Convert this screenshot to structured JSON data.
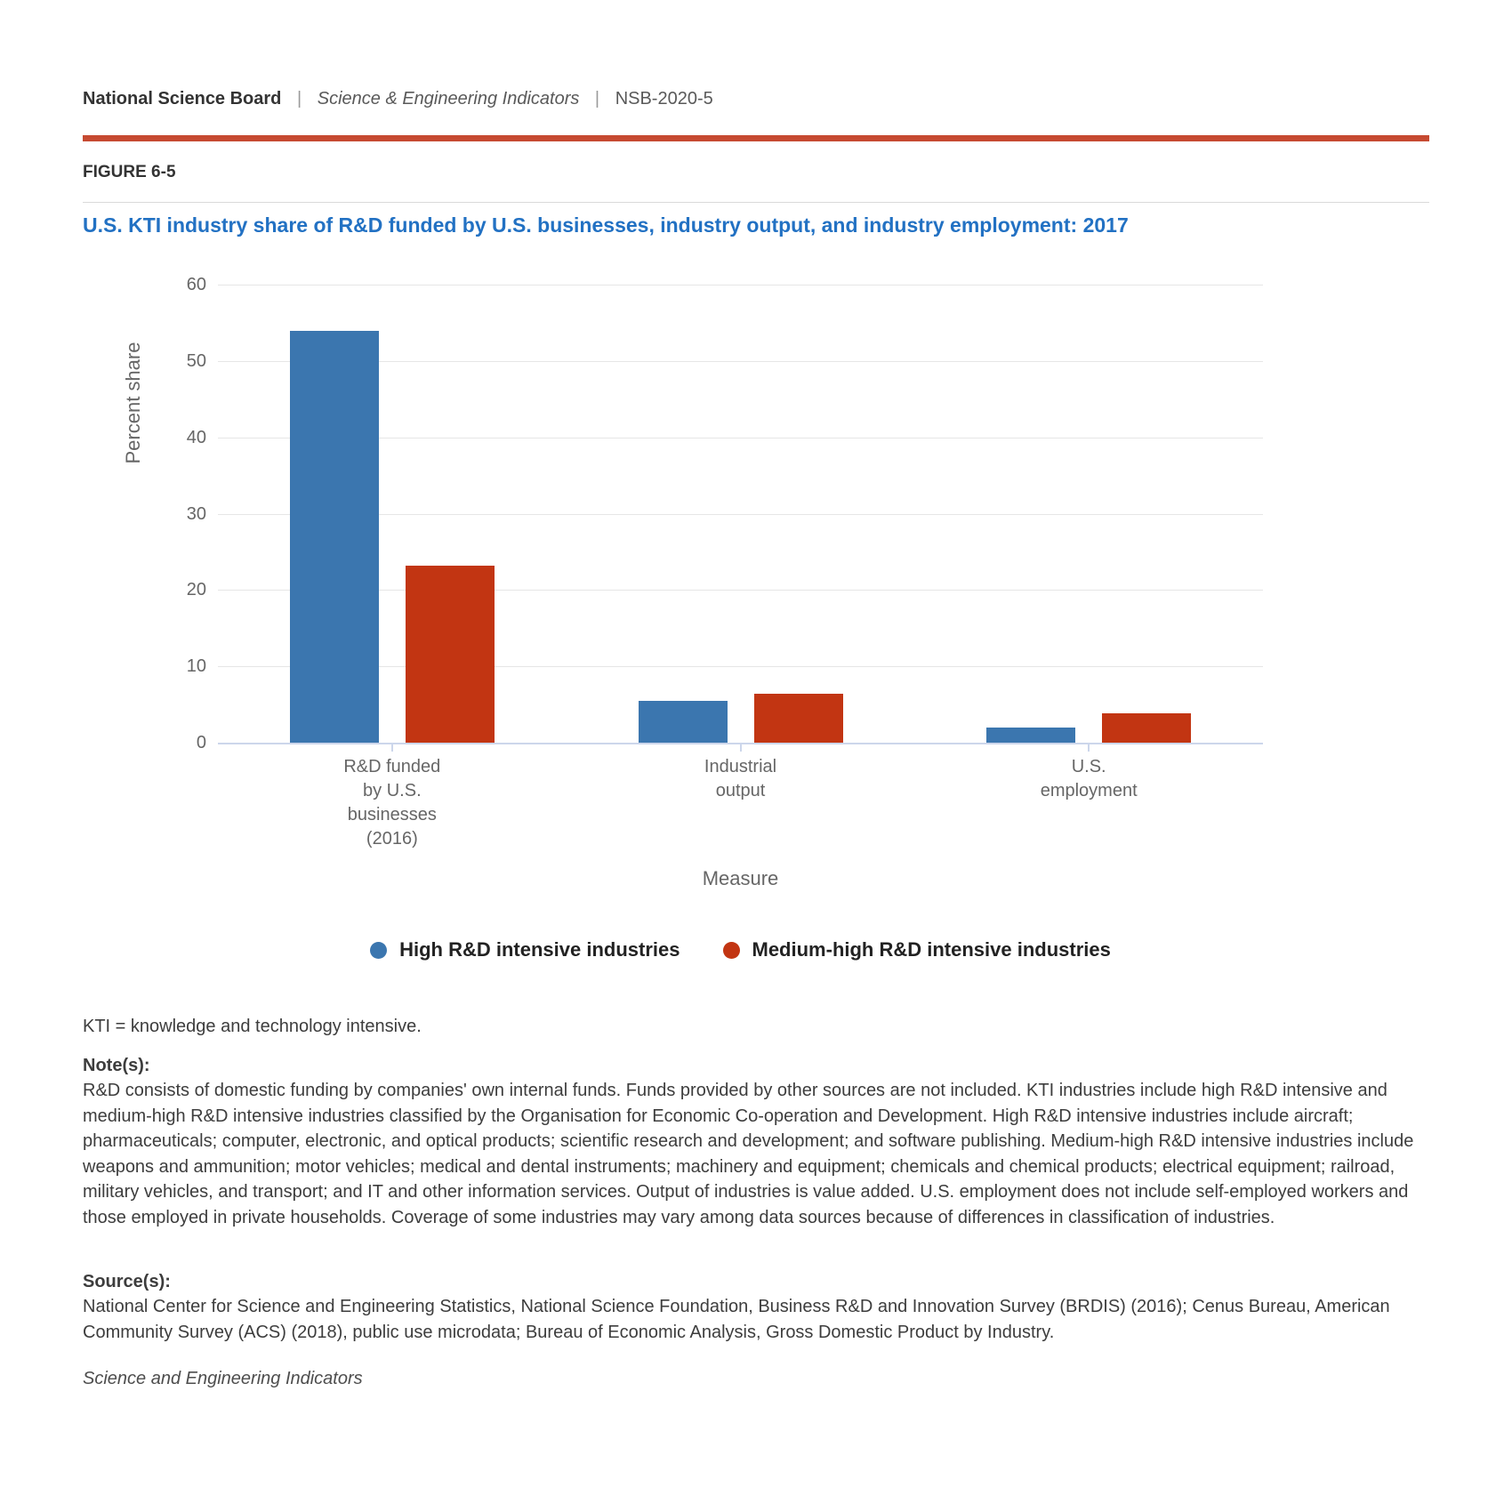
{
  "header": {
    "brand": "National Science Board",
    "sep1": "|",
    "publication": "Science & Engineering Indicators",
    "sep2": "|",
    "report_id": "NSB-2020-5"
  },
  "figure_label": "FIGURE 6-5",
  "chart_data": {
    "type": "bar",
    "title": "U.S. KTI industry share of R&D funded by U.S. businesses, industry output, and industry employment: 2017",
    "categories": [
      "R&D funded\nby U.S.\nbusinesses\n(2016)",
      "Industrial\noutput",
      "U.S.\nemployment"
    ],
    "series": [
      {
        "name": "High R&D intensive industries",
        "color": "#3b76af",
        "values": [
          53.9,
          5.5,
          2.0
        ]
      },
      {
        "name": "Medium-high R&D intensive industries",
        "color": "#c23512",
        "values": [
          23.2,
          6.4,
          3.9
        ]
      }
    ],
    "xlabel": "Measure",
    "ylabel": "Percent share",
    "ylim": [
      0,
      60
    ],
    "yticks": [
      0,
      10,
      20,
      30,
      40,
      50,
      60
    ],
    "grid": true,
    "legend_position": "bottom-center"
  },
  "footnotes": {
    "abbreviation": "KTI = knowledge and technology intensive.",
    "notes_heading": "Note(s):",
    "notes_body": "R&D consists of domestic funding by companies' own internal funds. Funds provided by other sources are not included. KTI industries include high R&D intensive and medium-high R&D intensive industries classified by the Organisation for Economic Co-operation and Development. High R&D intensive industries include aircraft; pharmaceuticals; computer, electronic, and optical products; scientific research and development; and software publishing. Medium-high R&D intensive industries include weapons and ammunition; motor vehicles; medical and dental instruments; machinery and equipment; chemicals and chemical products; electrical equipment; railroad, military vehicles, and transport; and IT and other information services. Output of industries is value added. U.S. employment does not include self-employed workers and those employed in private households. Coverage of some industries may vary among data sources because of differences in classification of industries.",
    "sources_heading": "Source(s):",
    "sources_body": "National Center for Science and Engineering Statistics, National Science Foundation, Business R&D and Innovation Survey (BRDIS) (2016); Cenus Bureau, American Community Survey (ACS) (2018), public use microdata; Bureau of Economic Analysis, Gross Domestic Product by Industry.",
    "footer_italic": "Science and Engineering Indicators"
  },
  "colors": {
    "accent_rule": "#c64a31",
    "title_blue": "#2271c3",
    "axis_line": "#ccd6eb",
    "gridline": "#e6e6e6",
    "axis_text": "#666666",
    "body_text": "#3d3d3d"
  }
}
